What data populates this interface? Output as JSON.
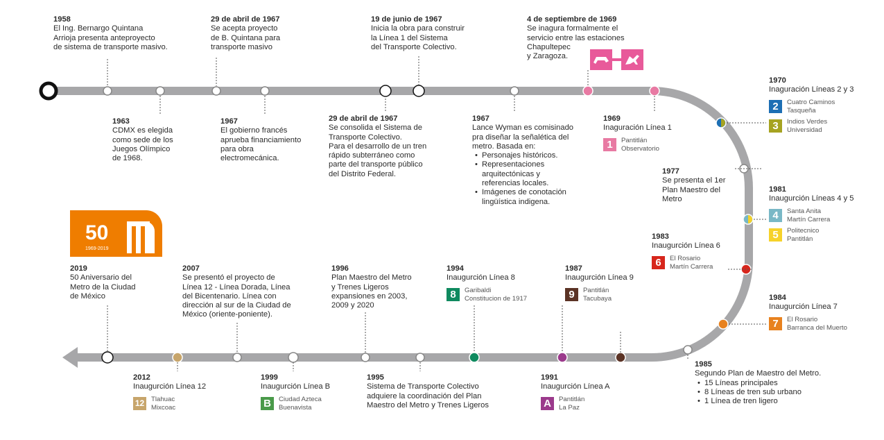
{
  "events": {
    "e1958": {
      "year": "1958",
      "text": [
        "El Ing. Bernargo Quintana",
        "Arrioja presenta anteproyecto",
        "de sistema de transporte masivo."
      ]
    },
    "e1963": {
      "year": "1963",
      "text": [
        "CDMX es elegida",
        "como sede de los",
        "Juegos Olímpico",
        "de 1968."
      ]
    },
    "e1967a": {
      "year": "29 de abril de 1967",
      "text": [
        "Se acepta proyecto",
        "de B. Quintana para",
        "transporte masivo"
      ]
    },
    "e1967b": {
      "year": "1967",
      "text": [
        "El gobierno  francés",
        "apruebа financiamiento",
        "para obra",
        "electromecánica."
      ]
    },
    "e1967c": {
      "year": "19 de junio de 1967",
      "text": [
        "Inicia la obra para construir",
        "la Línea  1  del  Sistema",
        "del Transporte Colectivo."
      ]
    },
    "e1967d": {
      "year": "29 de abril de 1967",
      "text": [
        "Se consolida el Sistema de",
        "Transporte Colectivo.",
        "Para el desarrollo de un tren",
        "rápido subterráneo como",
        "parte del transporte público",
        "del Distrito Federal."
      ]
    },
    "e1967e": {
      "year": "1967",
      "text": [
        "Lance Wyman es comisinado",
        "pra diseñar la señalética del",
        "metro. Basada en:"
      ],
      "bullets": [
        "Personajes históricos.",
        "Representaciones\narquitectónicas y\nreferencias locales.",
        "Imágenes de conotación\nlingüística indigena."
      ]
    },
    "e1969a": {
      "year": "4  de  septiembre  de  1969",
      "text": [
        "Se  inagura  formalmente  el",
        "servicio entre las estaciones",
        "Chapultepec",
        "y Zaragoza."
      ]
    },
    "e1969b": {
      "year": "1969",
      "text": [
        "Inaguración Línea 1"
      ],
      "lines": [
        {
          "badge": "1",
          "color": "#e87aa3",
          "st": [
            "Pantitlán",
            "Observatorio"
          ]
        }
      ]
    },
    "e1970": {
      "year": "1970",
      "text": [
        "Inaguración Líneas 2 y 3"
      ],
      "lines": [
        {
          "badge": "2",
          "color": "#1d6fb4",
          "st": [
            "Cuatro Caminos",
            "Tasqueña"
          ]
        },
        {
          "badge": "3",
          "color": "#a6a321",
          "st": [
            "Indios Verdes",
            "Universidad"
          ]
        }
      ]
    },
    "e1977": {
      "year": "1977",
      "text": [
        "Se presenta el 1er",
        "Plan Maestro del",
        "Metro"
      ]
    },
    "e1981": {
      "year": "1981",
      "text": [
        "Inaugurción Líneas 4 y 5"
      ],
      "lines": [
        {
          "badge": "4",
          "color": "#79b8c6",
          "st": [
            "Santa Anita",
            "Martín Carrera"
          ]
        },
        {
          "badge": "5",
          "color": "#f6d22a",
          "st": [
            "Politecnico",
            "Pantitlán"
          ]
        }
      ]
    },
    "e1983": {
      "year": "1983",
      "text": [
        "Inaugurción Línea 6"
      ],
      "lines": [
        {
          "badge": "6",
          "color": "#d7261c",
          "st": [
            "El Rosario",
            "Martín Carrera"
          ]
        }
      ]
    },
    "e1984": {
      "year": "1984",
      "text": [
        "Inaugurción Línea 7"
      ],
      "lines": [
        {
          "badge": "7",
          "color": "#e8821f",
          "st": [
            "El Rosario",
            "Barranca del Muerto"
          ]
        }
      ]
    },
    "e1985": {
      "year": "1985",
      "text": [
        "Segundo Plan de  Maestro del Metro."
      ],
      "bullets": [
        "15 Líneas principales",
        "8 Líneas de tren sub urbano",
        "1 Línea de tren ligero"
      ]
    },
    "e1987": {
      "year": "1987",
      "text": [
        "Inaugurción Línea 9"
      ],
      "lines": [
        {
          "badge": "9",
          "color": "#5b3325",
          "st": [
            "Pantitlán",
            "Tacubaya"
          ]
        }
      ]
    },
    "e1991": {
      "year": "1991",
      "text": [
        "Inaugurción Línea A"
      ],
      "lines": [
        {
          "badge": "A",
          "color": "#9b3a8c",
          "st": [
            "Pantitlán",
            "La Paz"
          ]
        }
      ]
    },
    "e1994": {
      "year": "1994",
      "text": [
        "Inaugurción Línea 8"
      ],
      "lines": [
        {
          "badge": "8",
          "color": "#0f8a5f",
          "st": [
            "Garibaldi",
            "Constitucion de 1917"
          ]
        }
      ]
    },
    "e1995": {
      "year": "1995",
      "text": [
        "Sistema de Transporte Colectivo",
        "adquiere la coordinación del Plan",
        "Maestro del Metro y Trenes Ligeros"
      ]
    },
    "e1996": {
      "year": "1996",
      "text": [
        "Plan Maestro del Metro",
        "y Trenes Ligeros",
        "expansiones en 2003,",
        "2009 y 2020"
      ]
    },
    "e1999": {
      "year": "1999",
      "text": [
        "Inaugurción Línea B"
      ],
      "lines": [
        {
          "badge": "B",
          "color": "#4a9a4a",
          "st": [
            "Ciudad Azteca",
            "Buenavista"
          ]
        }
      ]
    },
    "e2007": {
      "year": "2007",
      "text": [
        "Se presentó el proyecto de",
        "Línea 12 - Línea Dorada, Línea",
        "del Bicentenario. Línea con",
        "dirección al sur de la Ciudad de",
        "México (oriente-poniente)."
      ]
    },
    "e2012": {
      "year": "2012",
      "text": [
        "Inaugurción Línea 12"
      ],
      "lines": [
        {
          "badge": "12",
          "color": "#c7a56b",
          "st": [
            "Tlahuac",
            "Mixcoac"
          ]
        }
      ]
    },
    "e2019": {
      "year": "2019",
      "text": [
        "50 Aniversario del",
        "Metro de la Ciudad",
        "de México"
      ]
    }
  },
  "logo": {
    "number": "50",
    "years": "1969-2019",
    "color": "#ef7d00"
  },
  "colors": {
    "track": "#a7a7a9",
    "text": "#2a2a2a",
    "pink": "#e85a9a"
  }
}
